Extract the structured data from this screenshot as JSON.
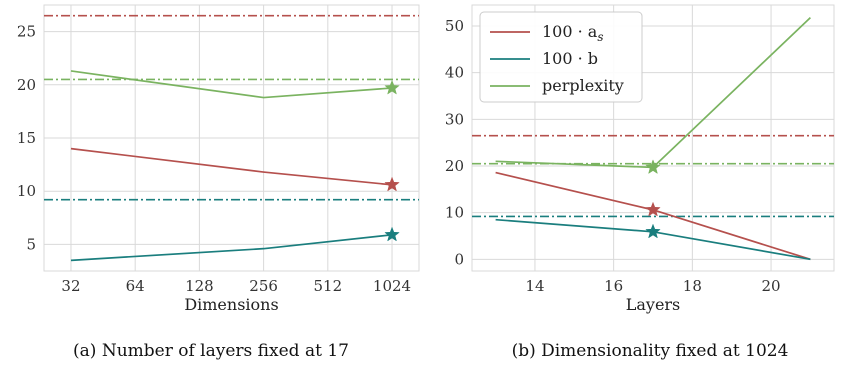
{
  "colors": {
    "alpha": "#b5504d",
    "beta": "#1a7e7e",
    "perplexity": "#7ab360",
    "panel_bg": "#ffffff",
    "grid": "#d9d9d9",
    "frame": "#d9d9d9"
  },
  "chart_data": [
    {
      "type": "line",
      "caption": "(a) Number of layers fixed at 17",
      "xlabel": "Dimensions",
      "ylabel": "",
      "x_scale": "log2",
      "x": [
        32,
        256,
        1024
      ],
      "x_ticks": [
        32,
        64,
        128,
        256,
        512,
        1024
      ],
      "x_tick_labels": [
        "32",
        "64",
        "128",
        "256",
        "512",
        "1024"
      ],
      "ylim": [
        2.5,
        27.5
      ],
      "y_ticks": [
        5,
        10,
        15,
        20,
        25
      ],
      "y_tick_labels": [
        "5",
        "10",
        "15",
        "20",
        "25"
      ],
      "grid": true,
      "series": [
        {
          "key": "alpha",
          "values": [
            14.0,
            11.8,
            10.6
          ],
          "reference": 26.5,
          "star_x": 1024,
          "star_y": 10.6
        },
        {
          "key": "beta",
          "values": [
            3.5,
            4.6,
            5.9
          ],
          "reference": 9.2,
          "star_x": 1024,
          "star_y": 5.9
        },
        {
          "key": "perplexity",
          "values": [
            21.3,
            18.8,
            19.7
          ],
          "reference": 20.5,
          "star_x": 1024,
          "star_y": 19.7
        }
      ]
    },
    {
      "type": "line",
      "caption": "(b) Dimensionality fixed at 1024",
      "xlabel": "Layers",
      "ylabel": "",
      "x": [
        13,
        17,
        21
      ],
      "xlim": [
        12.4,
        21.6
      ],
      "x_ticks": [
        14,
        16,
        18,
        20
      ],
      "x_tick_labels": [
        "14",
        "16",
        "18",
        "20"
      ],
      "ylim": [
        -2.5,
        54.5
      ],
      "y_ticks": [
        0,
        10,
        20,
        30,
        40,
        50
      ],
      "y_tick_labels": [
        "0",
        "10",
        "20",
        "30",
        "40",
        "50"
      ],
      "grid": true,
      "legend_position": "top-left",
      "series": [
        {
          "key": "alpha",
          "name": "100 · a",
          "subscript": "s",
          "values": [
            18.6,
            10.6,
            0.0
          ],
          "reference": 26.5,
          "star_x": 17,
          "star_y": 10.6
        },
        {
          "key": "beta",
          "name": "100 · b",
          "subscript": "",
          "values": [
            8.5,
            5.9,
            0.0
          ],
          "reference": 9.2,
          "star_x": 17,
          "star_y": 5.9
        },
        {
          "key": "perplexity",
          "name": "perplexity",
          "subscript": "",
          "values": [
            21.0,
            19.7,
            51.8
          ],
          "reference": 20.5,
          "star_x": 17,
          "star_y": 19.7
        }
      ]
    }
  ]
}
